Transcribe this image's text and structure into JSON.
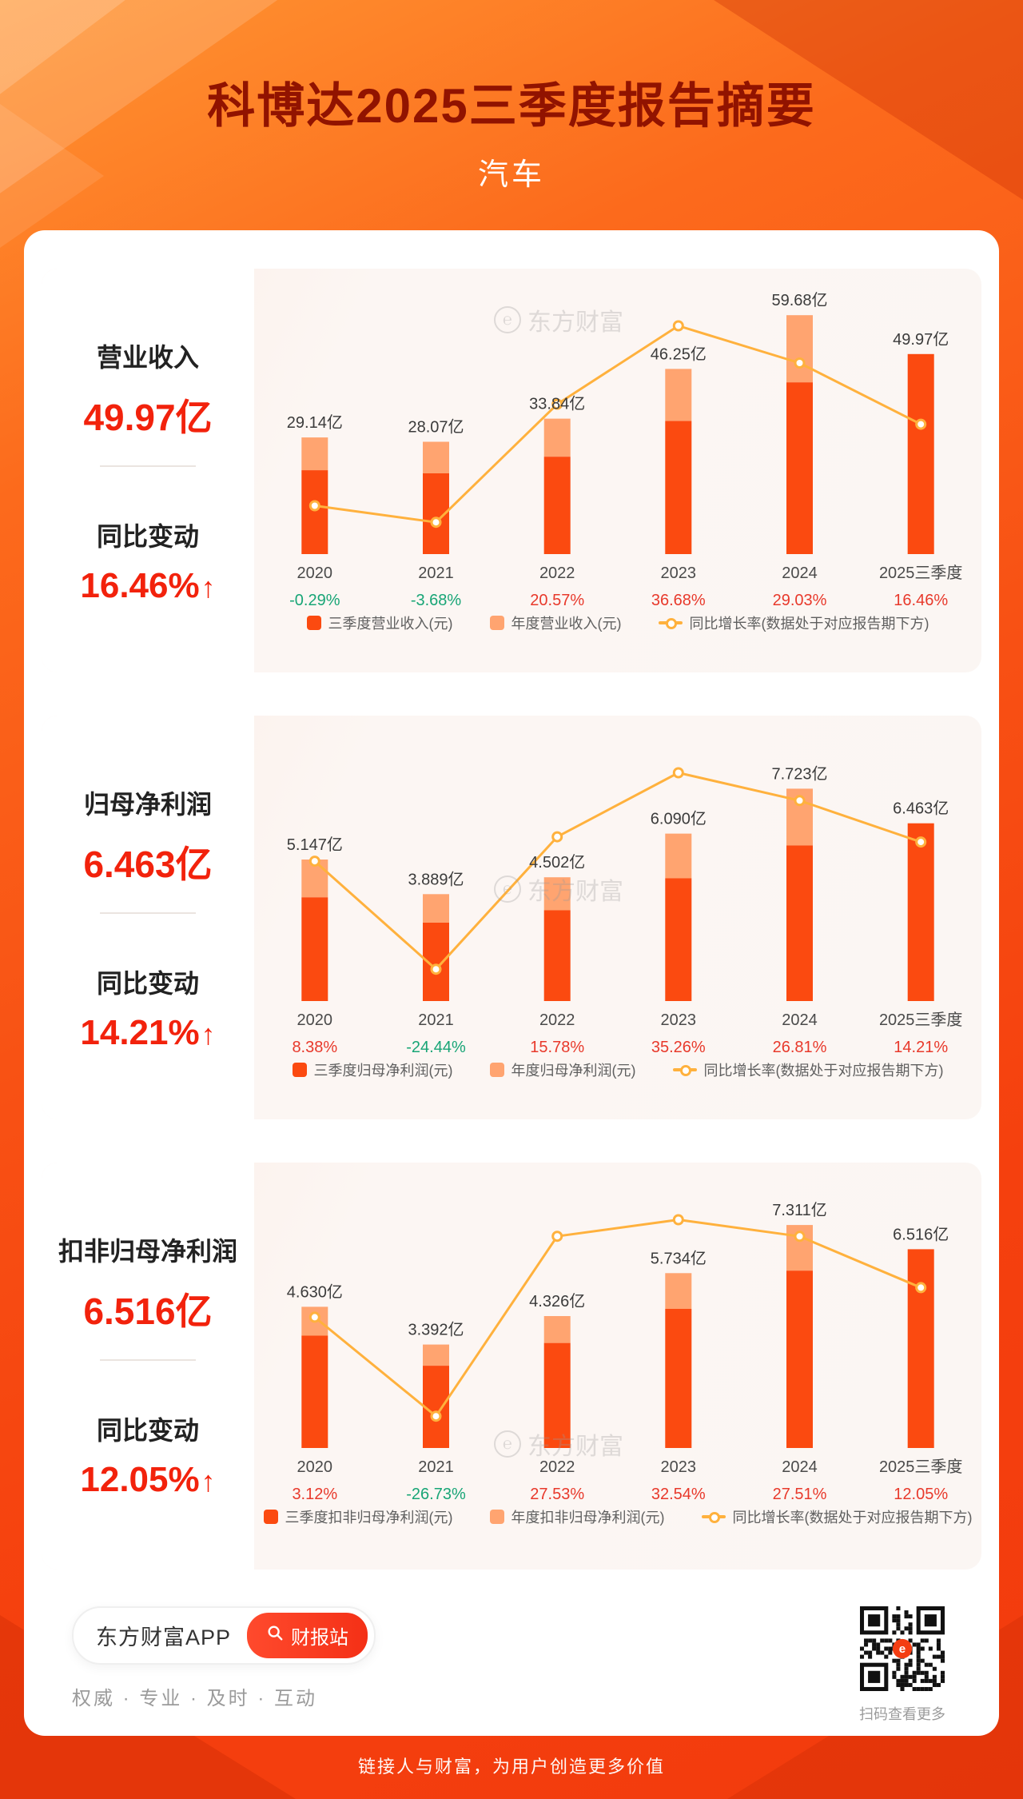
{
  "header": {
    "title": "科博达2025三季度报告摘要",
    "subtitle": "汽车"
  },
  "watermark": {
    "logo": "℮",
    "text": "东方财富"
  },
  "panels": [
    {
      "metric_label": "营业收入",
      "metric_value": "49.97亿",
      "change_label": "同比变动",
      "change_value": "16.46%",
      "change_arrow": "↑"
    },
    {
      "metric_label": "归母净利润",
      "metric_value": "6.463亿",
      "change_label": "同比变动",
      "change_value": "14.21%",
      "change_arrow": "↑"
    },
    {
      "metric_label": "扣非归母净利润",
      "metric_value": "6.516亿",
      "change_label": "同比变动",
      "change_value": "12.05%",
      "change_arrow": "↑"
    }
  ],
  "chart_data": [
    {
      "type": "bar",
      "title": "营业收入",
      "unit": "亿",
      "categories": [
        "2020",
        "2021",
        "2022",
        "2023",
        "2024",
        "2025三季度"
      ],
      "bar_labels": [
        "29.14亿",
        "28.07亿",
        "33.84亿",
        "46.25亿",
        "59.68亿",
        "49.97亿"
      ],
      "annual_values": [
        29.14,
        28.07,
        33.84,
        46.25,
        59.68,
        null
      ],
      "q3_values": [
        20.95,
        20.18,
        24.33,
        33.26,
        42.91,
        49.97
      ],
      "growth_pct": [
        -0.29,
        -3.68,
        20.57,
        36.68,
        29.03,
        16.46
      ],
      "growth_labels": [
        "-0.29%",
        "-3.68%",
        "20.57%",
        "36.68%",
        "29.03%",
        "16.46%"
      ],
      "legend": [
        {
          "label": "三季度营业收入(元)",
          "swatch": "q3"
        },
        {
          "label": "年度营业收入(元)",
          "swatch": "annual"
        },
        {
          "label": "同比增长率(数据处于对应报告期下方)",
          "swatch": "line"
        }
      ]
    },
    {
      "type": "bar",
      "title": "归母净利润",
      "unit": "亿",
      "categories": [
        "2020",
        "2021",
        "2022",
        "2023",
        "2024",
        "2025三季度"
      ],
      "bar_labels": [
        "5.147亿",
        "3.889亿",
        "4.502亿",
        "6.090亿",
        "7.723亿",
        "6.463亿"
      ],
      "annual_values": [
        5.147,
        3.889,
        4.502,
        6.09,
        7.723,
        null
      ],
      "q3_values": [
        3.772,
        2.85,
        3.299,
        4.462,
        5.659,
        6.463
      ],
      "growth_pct": [
        8.38,
        -24.44,
        15.78,
        35.26,
        26.81,
        14.21
      ],
      "growth_labels": [
        "8.38%",
        "-24.44%",
        "15.78%",
        "35.26%",
        "26.81%",
        "14.21%"
      ],
      "legend": [
        {
          "label": "三季度归母净利润(元)",
          "swatch": "q3"
        },
        {
          "label": "年度归母净利润(元)",
          "swatch": "annual"
        },
        {
          "label": "同比增长率(数据处于对应报告期下方)",
          "swatch": "line"
        }
      ]
    },
    {
      "type": "bar",
      "title": "扣非归母净利润",
      "unit": "亿",
      "categories": [
        "2020",
        "2021",
        "2022",
        "2023",
        "2024",
        "2025三季度"
      ],
      "bar_labels": [
        "4.630亿",
        "3.392亿",
        "4.326亿",
        "5.734亿",
        "7.311亿",
        "6.516亿"
      ],
      "annual_values": [
        4.63,
        3.392,
        4.326,
        5.734,
        7.311,
        null
      ],
      "q3_values": [
        3.682,
        2.698,
        3.441,
        4.561,
        5.815,
        6.516
      ],
      "growth_pct": [
        3.12,
        -26.73,
        27.53,
        32.54,
        27.51,
        12.05
      ],
      "growth_labels": [
        "3.12%",
        "-26.73%",
        "27.53%",
        "32.54%",
        "27.51%",
        "12.05%"
      ],
      "legend": [
        {
          "label": "三季度扣非归母净利润(元)",
          "swatch": "q3"
        },
        {
          "label": "年度扣非归母净利润(元)",
          "swatch": "annual"
        },
        {
          "label": "同比增长率(数据处于对应报告期下方)",
          "swatch": "line"
        }
      ]
    }
  ],
  "footer": {
    "app_name": "东方财富APP",
    "report_button": "财报站",
    "tagline": "权威 · 专业 · 及时 · 互动",
    "qr_caption": "扫码查看更多",
    "bottom_slogan": "链接人与财富，为用户创造更多价值"
  },
  "colors": {
    "bar_q3": "#fb4a10",
    "bar_annual": "#ffa470",
    "line": "#ffb13d",
    "positive_red": "#e8392b",
    "negative_green": "#18a576",
    "value_red": "#f2220c",
    "title": "#911300"
  }
}
